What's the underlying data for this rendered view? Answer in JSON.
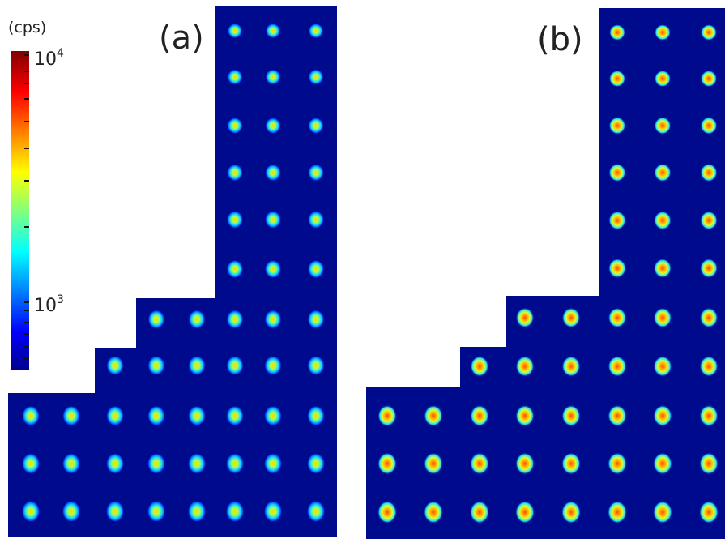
{
  "colorbar": {
    "unit": "(cps)",
    "ticks": [
      {
        "base": "10",
        "exponent": "4"
      },
      {
        "base": "10",
        "exponent": "3"
      }
    ]
  },
  "panels": [
    {
      "label": "(a)"
    },
    {
      "label": "(b)"
    }
  ]
}
